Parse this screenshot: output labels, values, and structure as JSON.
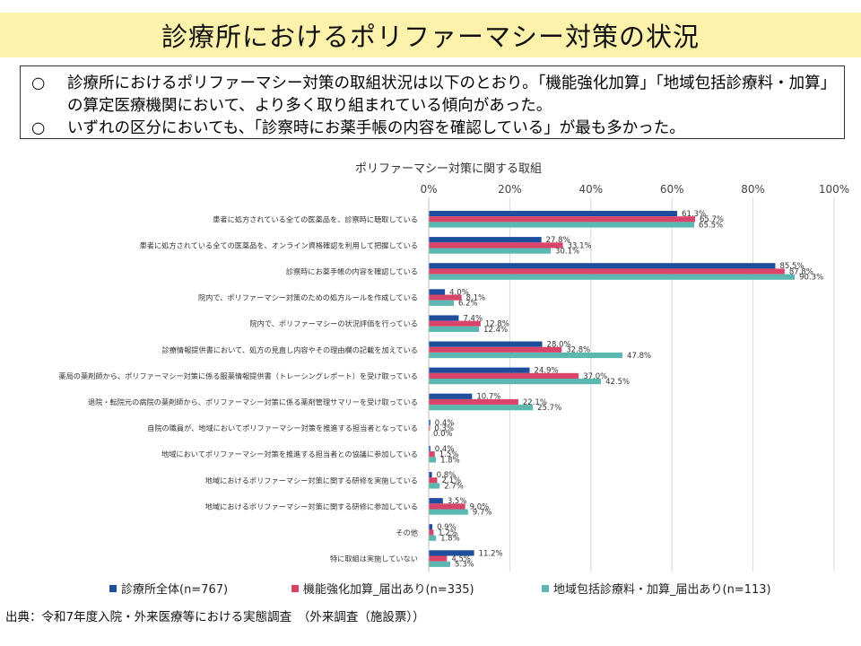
{
  "header": {
    "title": "診療所におけるポリファーマシー対策の状況"
  },
  "summary": {
    "bullet": "○",
    "items": [
      "診療所におけるポリファーマシー対策の取組状況は以下のとおり。「機能強化加算」「地域包括診療料・加算」の算定医療機関において、より多く取り組まれている傾向があった。",
      "いずれの区分においても、「診察時にお薬手帳の内容を確認している」が最も多かった。"
    ]
  },
  "source": "出典：令和7年度入院・外来医療等における実態調査　（外来調査（施設票））",
  "chart_data": {
    "type": "bar",
    "orientation": "horizontal",
    "title": "ポリファーマシー対策に関する取組",
    "xlim": [
      0,
      100
    ],
    "x_ticks": [
      "0%",
      "20%",
      "40%",
      "60%",
      "80%",
      "100%"
    ],
    "grid": true,
    "legend_position": "bottom",
    "value_suffix": "%",
    "categories": [
      "患者に処方されている全ての医薬品を、診察時に聴取している",
      "患者に処方されている全ての医薬品を、オンライン資格確認を利用して把握している",
      "診察時にお薬手帳の内容を確認している",
      "院内で、ポリファーマシー対策のための処方ルールを作成している",
      "院内で、ポリファーマシーの状況評価を行っている",
      "診療情報提供書において、処方の見直し内容やその理由欄の記載を加えている",
      "薬局の薬剤師から、ポリファーマシー対策に係る服薬情報提供書（トレーシングレポート）を受け取っている",
      "退院・転院元の病院の薬剤師から、ポリファーマシー対策に係る薬剤管理サマリーを受け取っている",
      "自院の職員が、地域においてポリファーマシー対策を推進する担当者となっている",
      "地域においてポリファーマシー対策を推進する担当者との協議に参加している",
      "地域におけるポリファーマシー対策に関する研修を実施している",
      "地域におけるポリファーマシー対策に関する研修に参加している",
      "その他",
      "特に取組は実施していない"
    ],
    "series": [
      {
        "name": "診療所全体(n=767)",
        "color": "#1f4e9c",
        "values": [
          61.3,
          27.8,
          85.5,
          4.0,
          7.4,
          28.0,
          24.9,
          10.7,
          0.4,
          0.4,
          0.8,
          3.5,
          0.9,
          11.2
        ]
      },
      {
        "name": "機能強化加算_届出あり(n=335)",
        "color": "#d9446a",
        "values": [
          65.7,
          33.1,
          87.8,
          8.1,
          12.8,
          32.8,
          37.0,
          22.1,
          0.3,
          1.5,
          2.1,
          9.0,
          1.2,
          4.5
        ]
      },
      {
        "name": "地域包括診療料・加算_届出あり(n=113)",
        "color": "#5bb8b0",
        "values": [
          65.5,
          30.1,
          90.3,
          6.2,
          12.4,
          47.8,
          42.5,
          25.7,
          0.0,
          1.8,
          2.7,
          9.7,
          1.8,
          5.3
        ]
      }
    ]
  }
}
